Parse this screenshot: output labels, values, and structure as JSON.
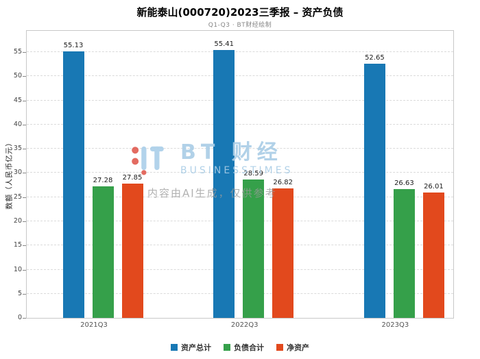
{
  "chart_data": {
    "type": "bar",
    "title": "新能泰山(000720)2023三季报 – 资产负债",
    "subtitle": "Q1-Q3 · BT财经绘制",
    "ylabel": "数额（人民币亿元）",
    "categories": [
      "2021Q3",
      "2022Q3",
      "2023Q3"
    ],
    "series": [
      {
        "name": "资产总计",
        "color": "#1878b4",
        "values": [
          55.13,
          55.41,
          52.65
        ]
      },
      {
        "name": "负债合计",
        "color": "#35a04a",
        "values": [
          27.28,
          28.59,
          26.63
        ]
      },
      {
        "name": "净资产",
        "color": "#e2491d",
        "values": [
          27.85,
          26.82,
          26.01
        ]
      }
    ],
    "ylim": [
      0,
      59.4
    ],
    "yticks": [
      0,
      5,
      10,
      15,
      20,
      25,
      30,
      35,
      40,
      45,
      50,
      55
    ],
    "grid": true,
    "legend_position": "bottom"
  },
  "watermark": {
    "brand": "BT 财经",
    "brand_sub": "BUSINESSTIMES",
    "disclaimer": "内容由AI生成，仅供参考"
  }
}
